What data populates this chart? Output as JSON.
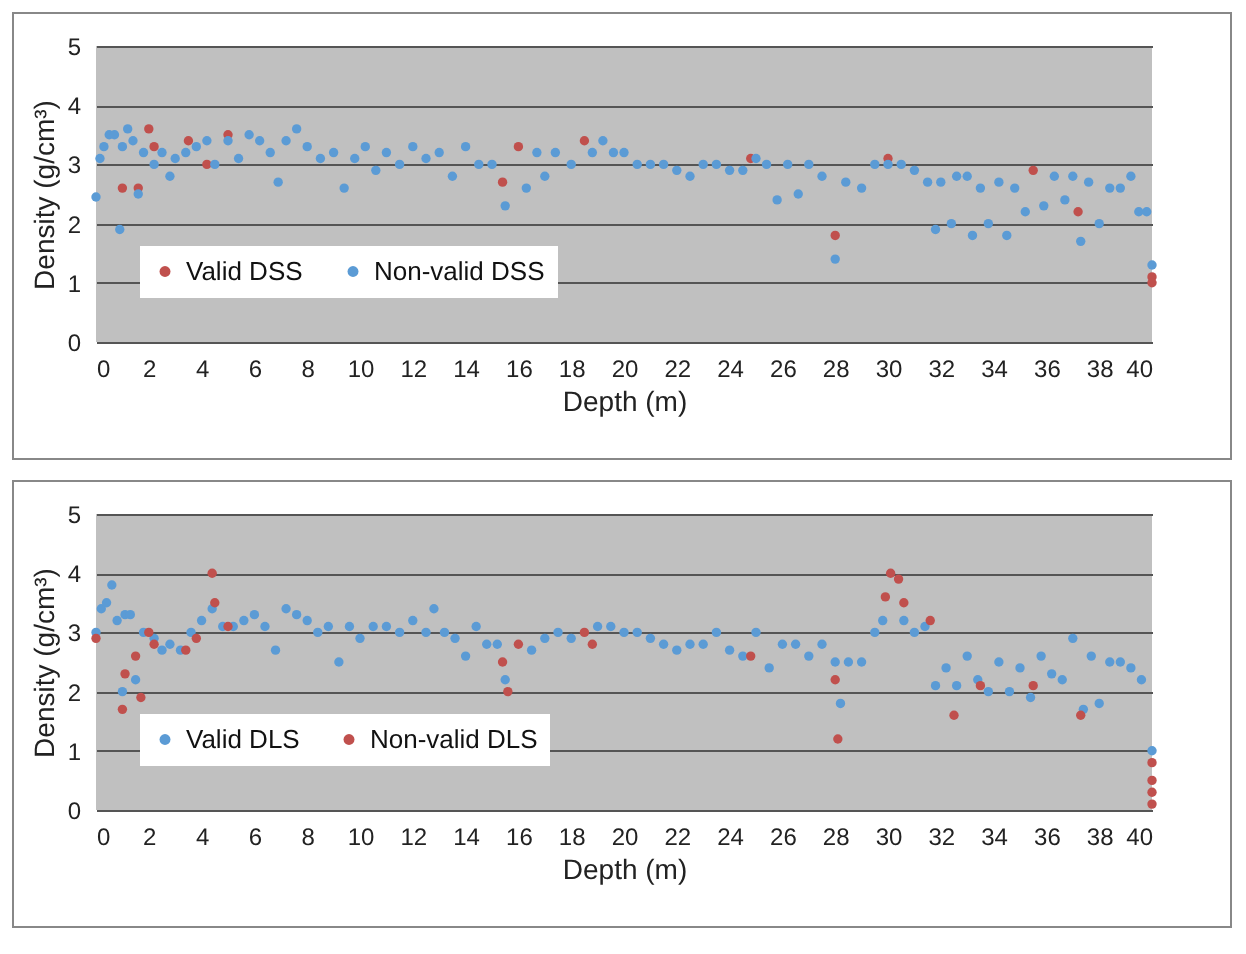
{
  "chart_data": [
    {
      "type": "scatter",
      "xlabel": "Depth (m)",
      "ylabel": "Density (g/cm³)",
      "xlim": [
        0,
        40
      ],
      "xticks": [
        0,
        2,
        4,
        6,
        8,
        10,
        12,
        14,
        16,
        18,
        20,
        22,
        24,
        26,
        28,
        30,
        32,
        34,
        36,
        38,
        40
      ],
      "ylim": [
        0,
        5
      ],
      "yticks": [
        0,
        1,
        2,
        3,
        4,
        5
      ],
      "grid": "y",
      "legend": "bottom left",
      "marker": "circle",
      "series": [
        {
          "name": "Valid DSS",
          "color": "#c0504d",
          "x": [
            1.0,
            1.6,
            2.0,
            2.2,
            3.5,
            4.2,
            5.0,
            15.4,
            16.0,
            18.5,
            24.8,
            28.0,
            30.0,
            35.5,
            37.2,
            40.0,
            40.0
          ],
          "values": [
            2.6,
            2.6,
            3.6,
            3.3,
            3.4,
            3.0,
            3.5,
            2.7,
            3.3,
            3.4,
            3.1,
            1.8,
            3.1,
            2.9,
            2.2,
            1.1,
            1.0
          ]
        },
        {
          "name": "Non-valid DSS",
          "color": "#5b9bd5",
          "x": [
            0,
            0.15,
            0.3,
            0.5,
            0.7,
            0.9,
            1.0,
            1.2,
            1.4,
            1.6,
            1.8,
            2.2,
            2.5,
            2.8,
            3.0,
            3.4,
            3.8,
            4.2,
            4.5,
            5.0,
            5.4,
            5.8,
            6.2,
            6.6,
            6.9,
            7.2,
            7.6,
            8.0,
            8.5,
            9.0,
            9.4,
            9.8,
            10.2,
            10.6,
            11.0,
            11.5,
            12.0,
            12.5,
            13.0,
            13.5,
            14.0,
            14.5,
            15.0,
            15.5,
            16.3,
            16.7,
            17.0,
            17.4,
            18.0,
            18.8,
            19.2,
            19.6,
            20.0,
            20.5,
            21.0,
            21.5,
            22.0,
            22.5,
            23.0,
            23.5,
            24.0,
            24.5,
            25.0,
            25.4,
            25.8,
            26.2,
            26.6,
            27.0,
            27.5,
            28.0,
            28.4,
            29.0,
            29.5,
            30.0,
            30.5,
            31.0,
            31.5,
            31.8,
            32.0,
            32.4,
            32.6,
            33.0,
            33.2,
            33.5,
            33.8,
            34.2,
            34.5,
            34.8,
            35.2,
            35.9,
            36.3,
            36.7,
            37.0,
            37.3,
            37.6,
            38.0,
            38.4,
            38.8,
            39.2,
            39.5,
            39.8,
            40.0
          ],
          "values": [
            2.45,
            3.1,
            3.3,
            3.5,
            3.5,
            1.9,
            3.3,
            3.6,
            3.4,
            2.5,
            3.2,
            3.0,
            3.2,
            2.8,
            3.1,
            3.2,
            3.3,
            3.4,
            3.0,
            3.4,
            3.1,
            3.5,
            3.4,
            3.2,
            2.7,
            3.4,
            3.6,
            3.3,
            3.1,
            3.2,
            2.6,
            3.1,
            3.3,
            2.9,
            3.2,
            3.0,
            3.3,
            3.1,
            3.2,
            2.8,
            3.3,
            3.0,
            3.0,
            2.3,
            2.6,
            3.2,
            2.8,
            3.2,
            3.0,
            3.2,
            3.4,
            3.2,
            3.2,
            3.0,
            3.0,
            3.0,
            2.9,
            2.8,
            3.0,
            3.0,
            2.9,
            2.9,
            3.1,
            3.0,
            2.4,
            3.0,
            2.5,
            3.0,
            2.8,
            1.4,
            2.7,
            2.6,
            3.0,
            3.0,
            3.0,
            2.9,
            2.7,
            1.9,
            2.7,
            2.0,
            2.8,
            2.8,
            1.8,
            2.6,
            2.0,
            2.7,
            1.8,
            2.6,
            2.2,
            2.3,
            2.8,
            2.4,
            2.8,
            1.7,
            2.7,
            2.0,
            2.6,
            2.6,
            2.8,
            2.2,
            2.2,
            1.3
          ]
        }
      ]
    },
    {
      "type": "scatter",
      "xlabel": "Depth (m)",
      "ylabel": "Density (g/cm³)",
      "xlim": [
        0,
        40
      ],
      "xticks": [
        0,
        2,
        4,
        6,
        8,
        10,
        12,
        14,
        16,
        18,
        20,
        22,
        24,
        26,
        28,
        30,
        32,
        34,
        36,
        38,
        40
      ],
      "ylim": [
        0,
        5
      ],
      "yticks": [
        0,
        1,
        2,
        3,
        4,
        5
      ],
      "grid": "y",
      "legend": "bottom left",
      "marker": "circle",
      "series": [
        {
          "name": "Valid DLS",
          "color": "#5b9bd5",
          "x": [
            0,
            0.2,
            0.4,
            0.6,
            0.8,
            1.0,
            1.1,
            1.3,
            1.5,
            1.8,
            2.2,
            2.5,
            2.8,
            3.2,
            3.6,
            4.0,
            4.4,
            4.8,
            5.2,
            5.6,
            6.0,
            6.4,
            6.8,
            7.2,
            7.6,
            8.0,
            8.4,
            8.8,
            9.2,
            9.6,
            10.0,
            10.5,
            11.0,
            11.5,
            12.0,
            12.5,
            12.8,
            13.2,
            13.6,
            14.0,
            14.4,
            14.8,
            15.2,
            15.5,
            16.5,
            17.0,
            17.5,
            18.0,
            19.0,
            19.5,
            20.0,
            20.5,
            21.0,
            21.5,
            22.0,
            22.5,
            23.0,
            23.5,
            24.0,
            24.5,
            25.0,
            25.5,
            26.0,
            26.5,
            27.0,
            27.5,
            28.0,
            28.2,
            28.5,
            29.0,
            29.5,
            29.8,
            30.6,
            31.0,
            31.4,
            31.8,
            32.2,
            32.6,
            33.0,
            33.4,
            33.8,
            34.2,
            34.6,
            35.0,
            35.4,
            35.8,
            36.2,
            36.6,
            37.0,
            37.4,
            37.7,
            38.0,
            38.4,
            38.8,
            39.2,
            39.6,
            40.0
          ],
          "values": [
            3.0,
            3.4,
            3.5,
            3.8,
            3.2,
            2.0,
            3.3,
            3.3,
            2.2,
            3.0,
            2.9,
            2.7,
            2.8,
            2.7,
            3.0,
            3.2,
            3.4,
            3.1,
            3.1,
            3.2,
            3.3,
            3.1,
            2.7,
            3.4,
            3.3,
            3.2,
            3.0,
            3.1,
            2.5,
            3.1,
            2.9,
            3.1,
            3.1,
            3.0,
            3.2,
            3.0,
            3.4,
            3.0,
            2.9,
            2.6,
            3.1,
            2.8,
            2.8,
            2.2,
            2.7,
            2.9,
            3.0,
            2.9,
            3.1,
            3.1,
            3.0,
            3.0,
            2.9,
            2.8,
            2.7,
            2.8,
            2.8,
            3.0,
            2.7,
            2.6,
            3.0,
            2.4,
            2.8,
            2.8,
            2.6,
            2.8,
            2.5,
            1.8,
            2.5,
            2.5,
            3.0,
            3.2,
            3.2,
            3.0,
            3.1,
            2.1,
            2.4,
            2.1,
            2.6,
            2.2,
            2.0,
            2.5,
            2.0,
            2.4,
            1.9,
            2.6,
            2.3,
            2.2,
            2.9,
            1.7,
            2.6,
            1.8,
            2.5,
            2.5,
            2.4,
            2.2,
            1.0
          ]
        },
        {
          "name": "Non-valid DLS",
          "color": "#c0504d",
          "x": [
            0,
            1.0,
            1.1,
            1.5,
            1.7,
            2.0,
            2.2,
            3.4,
            3.8,
            4.4,
            4.5,
            5.0,
            15.4,
            15.6,
            16.0,
            18.5,
            18.8,
            24.8,
            28.0,
            28.1,
            29.9,
            30.1,
            30.4,
            30.6,
            31.6,
            32.5,
            33.5,
            35.5,
            37.3,
            40.0,
            40.0,
            40.0,
            40.0
          ],
          "values": [
            2.9,
            1.7,
            2.3,
            2.6,
            1.9,
            3.0,
            2.8,
            2.7,
            2.9,
            4.0,
            3.5,
            3.1,
            2.5,
            2.0,
            2.8,
            3.0,
            2.8,
            2.6,
            2.2,
            1.2,
            3.6,
            4.0,
            3.9,
            3.5,
            3.2,
            1.6,
            2.1,
            2.1,
            1.6,
            0.8,
            0.5,
            0.3,
            0.1
          ]
        }
      ]
    }
  ]
}
